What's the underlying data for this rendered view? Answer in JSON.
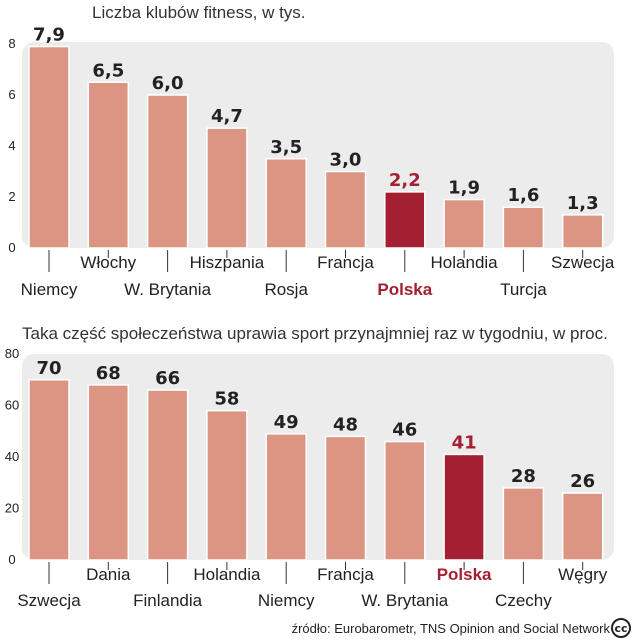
{
  "colors": {
    "bar": "#dc9582",
    "bar_highlight": "#a51f33",
    "highlight_text": "#a51f33",
    "panel": "#ececec",
    "bar_stroke": "#ffffff"
  },
  "chart_data": [
    {
      "type": "bar",
      "title": "Liczba klubów fitness, w tys.",
      "categories": [
        "Niemcy",
        "Włochy",
        "W. Brytania",
        "Hiszpania",
        "Rosja",
        "Francja",
        "Polska",
        "Holandia",
        "Turcja",
        "Szwecja"
      ],
      "values": [
        7.9,
        6.5,
        6.0,
        4.7,
        3.5,
        3.0,
        2.2,
        1.9,
        1.6,
        1.3
      ],
      "value_labels": [
        "7,9",
        "6,5",
        "6,0",
        "4,7",
        "3,5",
        "3,0",
        "2,2",
        "1,9",
        "1,6",
        "1,3"
      ],
      "highlight": "Polska",
      "ylim": [
        0,
        8
      ],
      "yticks": [
        0,
        2,
        4,
        6,
        8
      ],
      "xlabel": "",
      "ylabel": ""
    },
    {
      "type": "bar",
      "title": "Taka część społeczeństwa uprawia sport przynajmniej raz w tygodniu, w proc.",
      "categories": [
        "Szwecja",
        "Dania",
        "Finlandia",
        "Holandia",
        "Niemcy",
        "Francja",
        "W. Brytania",
        "Polska",
        "Czechy",
        "Węgry"
      ],
      "values": [
        70,
        68,
        66,
        58,
        49,
        48,
        46,
        41,
        28,
        26
      ],
      "value_labels": [
        "70",
        "68",
        "66",
        "58",
        "49",
        "48",
        "46",
        "41",
        "28",
        "26"
      ],
      "highlight": "Polska",
      "ylim": [
        0,
        80
      ],
      "yticks": [
        0,
        20,
        40,
        60,
        80
      ],
      "xlabel": "",
      "ylabel": ""
    }
  ],
  "source": "źródło: Eurobarometr, TNS Opinion and Social Network",
  "cc_icon": "creative-commons-icon"
}
